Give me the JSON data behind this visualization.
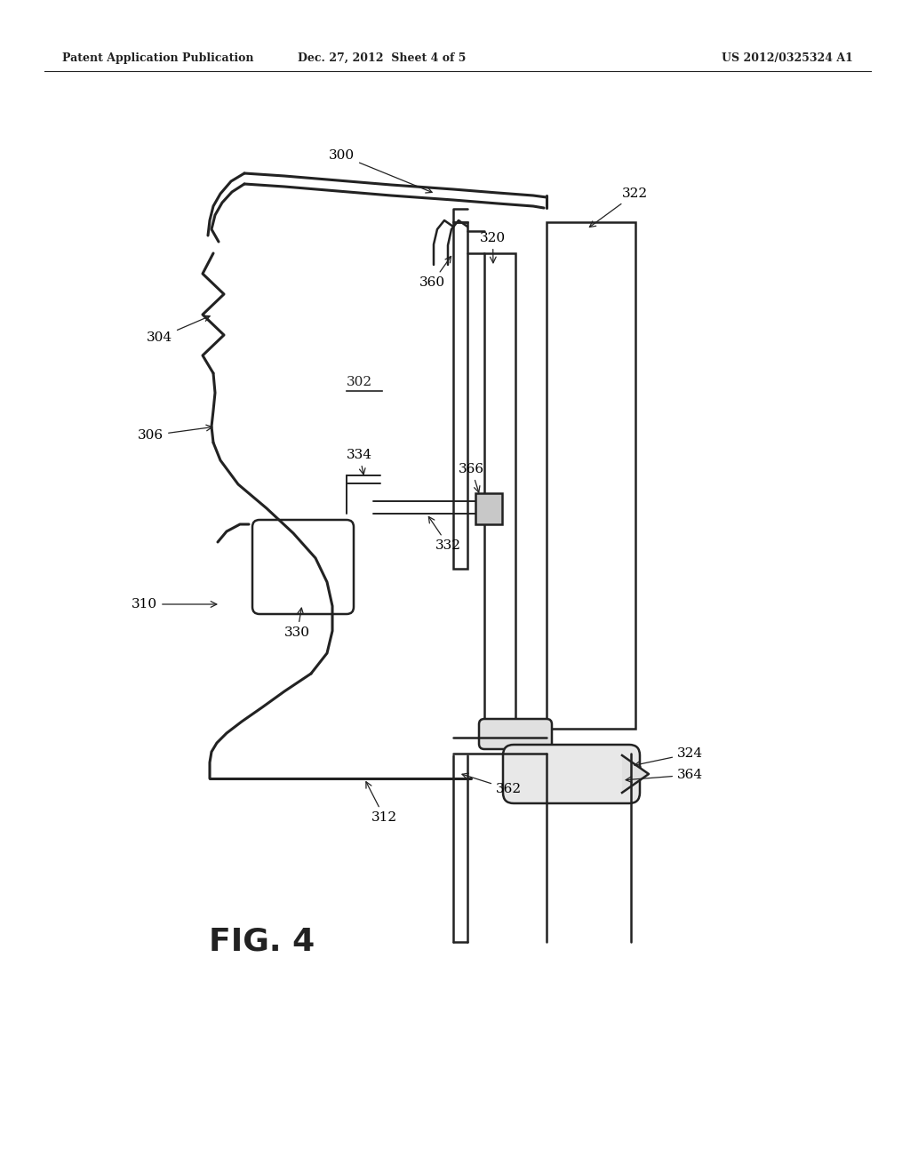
{
  "bg_color": "#ffffff",
  "line_color": "#222222",
  "header_left": "Patent Application Publication",
  "header_mid": "Dec. 27, 2012  Sheet 4 of 5",
  "header_right": "US 2012/0325324 A1",
  "fig_label": "FIG. 4",
  "lw_thick": 2.2,
  "lw_mid": 1.8,
  "lw_thin": 1.4,
  "label_fs": 11
}
